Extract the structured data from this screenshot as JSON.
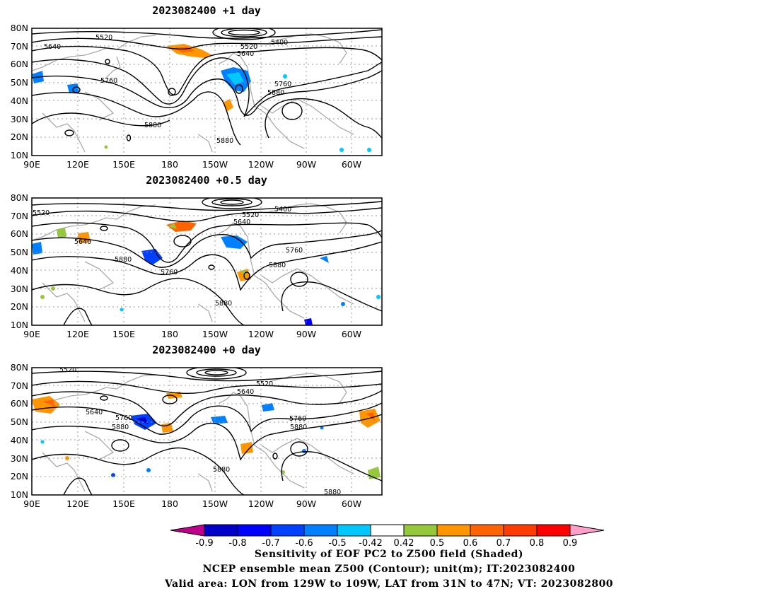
{
  "panels": [
    {
      "title": "2023082400  +1 day",
      "contour_labels": [
        "5520",
        "5640",
        "5520",
        "5640",
        "5400",
        "5760",
        "5760",
        "5880",
        "5880",
        "5880"
      ]
    },
    {
      "title": "2023082400  +0.5 day",
      "contour_labels": [
        "5520",
        "5520",
        "5640",
        "5400",
        "5640",
        "5880",
        "5760",
        "5760",
        "5880",
        "5880"
      ]
    },
    {
      "title": "2023082400  +0 day",
      "contour_labels": [
        "5520",
        "5520",
        "5640",
        "5640",
        "5760",
        "5880",
        "5760",
        "5880",
        "5880",
        "5880"
      ]
    }
  ],
  "axes": {
    "lon_ticks": [
      "90E",
      "120E",
      "150E",
      "180",
      "150W",
      "120W",
      "90W",
      "60W"
    ],
    "lat_ticks": [
      "80N",
      "70N",
      "60N",
      "50N",
      "40N",
      "30N",
      "20N",
      "10N"
    ],
    "lat_range": [
      10,
      80
    ],
    "grid": true
  },
  "colorbar": {
    "ticks": [
      "-0.9",
      "-0.8",
      "-0.7",
      "-0.6",
      "-0.5",
      "-0.42",
      "0.42",
      "0.5",
      "0.6",
      "0.7",
      "0.8",
      "0.9"
    ],
    "colors": [
      "#0000c8",
      "#0000ff",
      "#0040ff",
      "#0080ff",
      "#00c8ff",
      "#ffffff",
      "#96c83c",
      "#ff9600",
      "#ff6400",
      "#ff3c00",
      "#ff0000"
    ],
    "under_color": "#c0008c",
    "over_color": "#ffa0c8"
  },
  "footer": {
    "line1": "Sensitivity of EOF PC2 to Z500 field (Shaded)",
    "line2": "NCEP ensemble mean Z500 (Contour); unit(m); IT:2023082400",
    "line3": "Valid area: LON from 129W to 109W, LAT from 31N to 47N; VT: 2023082800"
  }
}
